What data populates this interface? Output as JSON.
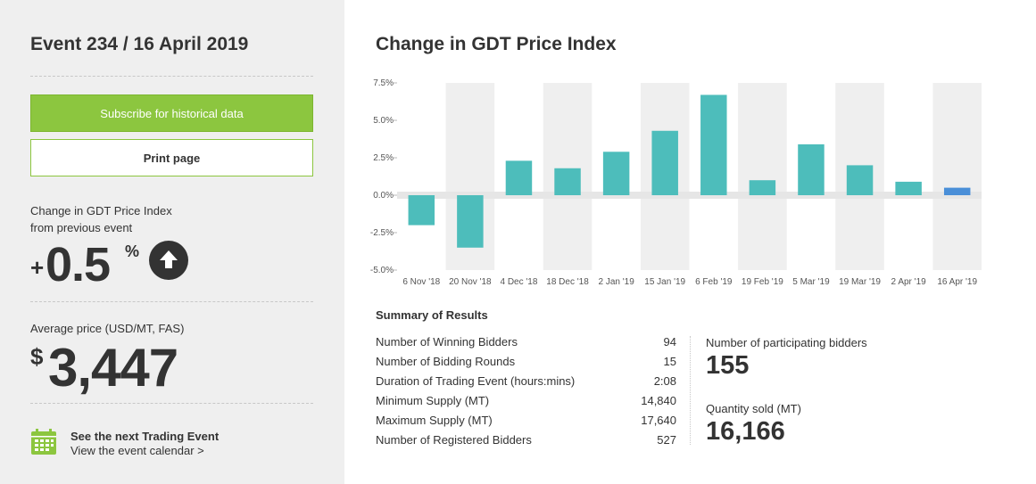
{
  "sidebar": {
    "event_title": "Event 234 / 16 April 2019",
    "subscribe_label": "Subscribe for historical data",
    "print_label": "Print page",
    "change_label_line1": "Change in GDT Price Index",
    "change_label_line2": "from previous event",
    "change_sign": "+",
    "change_value": "0.5",
    "change_unit": "%",
    "change_direction_icon": "arrow-up-icon",
    "avg_label": "Average price (USD/MT, FAS)",
    "avg_currency": "$",
    "avg_value": "3,447",
    "next_event_title": "See the next Trading Event",
    "next_event_link": "View the event calendar >",
    "calendar_icon": "calendar-icon"
  },
  "main": {
    "chart_title": "Change in GDT Price Index"
  },
  "chart_data": {
    "type": "bar",
    "title": "Change in GDT Price Index",
    "xlabel": "",
    "ylabel": "",
    "categories": [
      "6 Nov '18",
      "20 Nov '18",
      "4 Dec '18",
      "18 Dec '18",
      "2 Jan '19",
      "15 Jan '19",
      "6 Feb '19",
      "19 Feb '19",
      "5 Mar '19",
      "19 Mar '19",
      "2 Apr '19",
      "16 Apr '19"
    ],
    "values": [
      -2.0,
      -3.5,
      2.3,
      1.8,
      2.9,
      4.3,
      6.7,
      1.0,
      3.4,
      2.0,
      0.9,
      0.5
    ],
    "ylim": [
      -5.0,
      7.5
    ],
    "yticks": [
      "7.5%",
      "5.0%",
      "2.5%",
      "0.0%",
      "-2.5%",
      "-5.0%"
    ],
    "ytick_values": [
      7.5,
      5.0,
      2.5,
      0.0,
      -2.5,
      -5.0
    ],
    "grid": true,
    "bar_color": "#4dbdbb",
    "highlight_color": "#4a8fd8",
    "highlight_index": 11
  },
  "summary": {
    "title": "Summary of Results",
    "rows": [
      {
        "label": "Number of Winning Bidders",
        "value": "94"
      },
      {
        "label": "Number of Bidding Rounds",
        "value": "15"
      },
      {
        "label": "Duration of Trading Event (hours:mins)",
        "value": "2:08"
      },
      {
        "label": "Minimum Supply (MT)",
        "value": "14,840"
      },
      {
        "label": "Maximum Supply (MT)",
        "value": "17,640"
      },
      {
        "label": "Number of Registered Bidders",
        "value": "527"
      }
    ],
    "participating_label": "Number of participating bidders",
    "participating_value": "155",
    "quantity_label": "Quantity sold (MT)",
    "quantity_value": "16,166"
  },
  "colors": {
    "accent_green": "#8cc63f",
    "sidebar_bg": "#efefef",
    "text_dark": "#333333"
  }
}
